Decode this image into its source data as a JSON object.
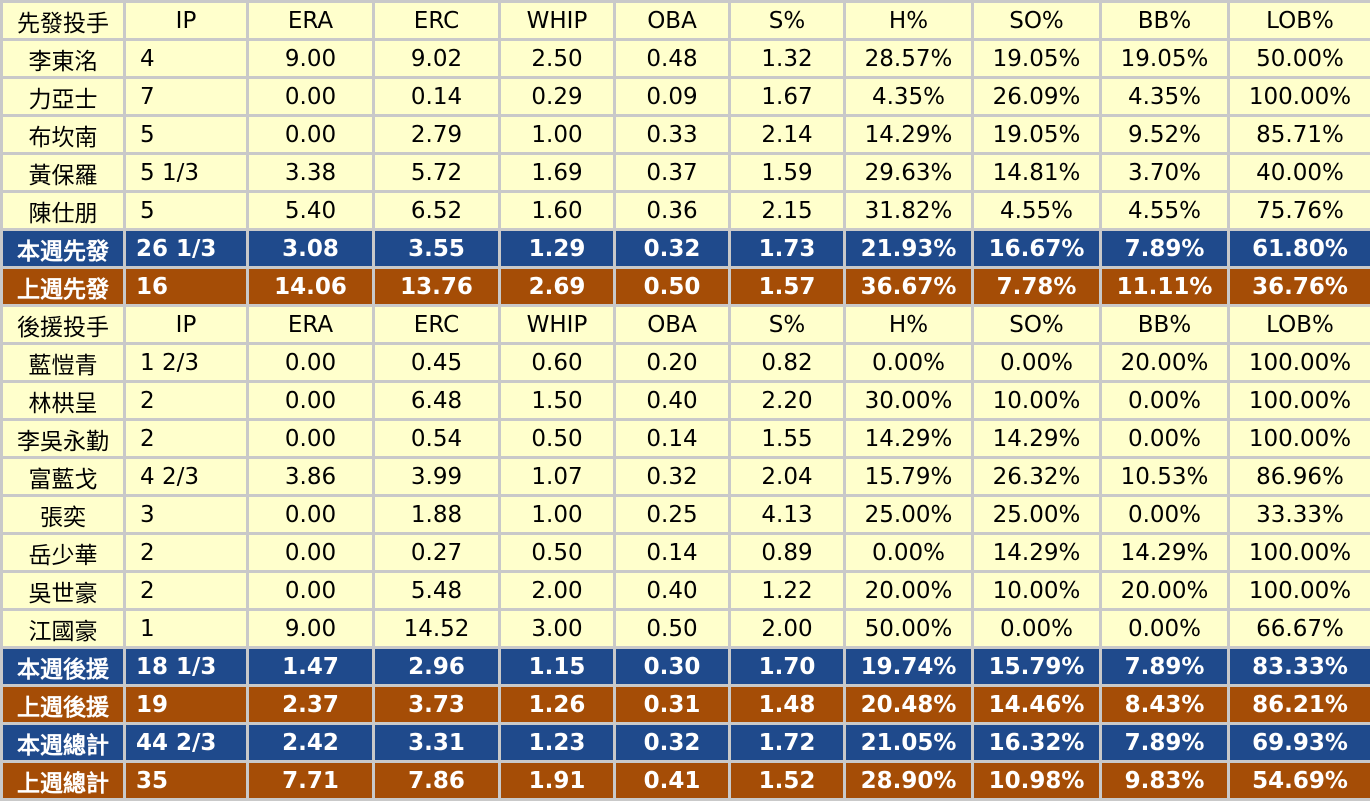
{
  "columns": [
    "IP",
    "ERA",
    "ERC",
    "WHIP",
    "OBA",
    "S%",
    "H%",
    "SO%",
    "BB%",
    "LOB%"
  ],
  "sections": [
    {
      "header": "先發投手",
      "rows": [
        {
          "name": "李東洺",
          "values": [
            "4",
            "9.00",
            "9.02",
            "2.50",
            "0.48",
            "1.32",
            "28.57%",
            "19.05%",
            "19.05%",
            "50.00%"
          ]
        },
        {
          "name": "力亞士",
          "values": [
            "7",
            "0.00",
            "0.14",
            "0.29",
            "0.09",
            "1.67",
            "4.35%",
            "26.09%",
            "4.35%",
            "100.00%"
          ]
        },
        {
          "name": "布坎南",
          "values": [
            "5",
            "0.00",
            "2.79",
            "1.00",
            "0.33",
            "2.14",
            "14.29%",
            "19.05%",
            "9.52%",
            "85.71%"
          ]
        },
        {
          "name": "黃保羅",
          "values": [
            "5 1/3",
            "3.38",
            "5.72",
            "1.69",
            "0.37",
            "1.59",
            "29.63%",
            "14.81%",
            "3.70%",
            "40.00%"
          ]
        },
        {
          "name": "陳仕朋",
          "values": [
            "5",
            "5.40",
            "6.52",
            "1.60",
            "0.36",
            "2.15",
            "31.82%",
            "4.55%",
            "4.55%",
            "75.76%"
          ]
        }
      ],
      "summaries": [
        {
          "type": "thisweek",
          "label": "本週先發",
          "values": [
            "26 1/3",
            "3.08",
            "3.55",
            "1.29",
            "0.32",
            "1.73",
            "21.93%",
            "16.67%",
            "7.89%",
            "61.80%"
          ]
        },
        {
          "type": "lastweek",
          "label": "上週先發",
          "values": [
            "16",
            "14.06",
            "13.76",
            "2.69",
            "0.50",
            "1.57",
            "36.67%",
            "7.78%",
            "11.11%",
            "36.76%"
          ]
        }
      ]
    },
    {
      "header": "後援投手",
      "rows": [
        {
          "name": "藍愷青",
          "values": [
            "1 2/3",
            "0.00",
            "0.45",
            "0.60",
            "0.20",
            "0.82",
            "0.00%",
            "0.00%",
            "20.00%",
            "100.00%"
          ]
        },
        {
          "name": "林栱呈",
          "values": [
            "2",
            "0.00",
            "6.48",
            "1.50",
            "0.40",
            "2.20",
            "30.00%",
            "10.00%",
            "0.00%",
            "100.00%"
          ]
        },
        {
          "name": "李吳永勤",
          "values": [
            "2",
            "0.00",
            "0.54",
            "0.50",
            "0.14",
            "1.55",
            "14.29%",
            "14.29%",
            "0.00%",
            "100.00%"
          ]
        },
        {
          "name": "富藍戈",
          "values": [
            "4 2/3",
            "3.86",
            "3.99",
            "1.07",
            "0.32",
            "2.04",
            "15.79%",
            "26.32%",
            "10.53%",
            "86.96%"
          ]
        },
        {
          "name": "張奕",
          "values": [
            "3",
            "0.00",
            "1.88",
            "1.00",
            "0.25",
            "4.13",
            "25.00%",
            "25.00%",
            "0.00%",
            "33.33%"
          ]
        },
        {
          "name": "岳少華",
          "values": [
            "2",
            "0.00",
            "0.27",
            "0.50",
            "0.14",
            "0.89",
            "0.00%",
            "14.29%",
            "14.29%",
            "100.00%"
          ]
        },
        {
          "name": "吳世豪",
          "values": [
            "2",
            "0.00",
            "5.48",
            "2.00",
            "0.40",
            "1.22",
            "20.00%",
            "10.00%",
            "20.00%",
            "100.00%"
          ]
        },
        {
          "name": "江國豪",
          "values": [
            "1",
            "9.00",
            "14.52",
            "3.00",
            "0.50",
            "2.00",
            "50.00%",
            "0.00%",
            "0.00%",
            "66.67%"
          ]
        }
      ],
      "summaries": [
        {
          "type": "thisweek",
          "label": "本週後援",
          "values": [
            "18 1/3",
            "1.47",
            "2.96",
            "1.15",
            "0.30",
            "1.70",
            "19.74%",
            "15.79%",
            "7.89%",
            "83.33%"
          ]
        },
        {
          "type": "lastweek",
          "label": "上週後援",
          "values": [
            "19",
            "2.37",
            "3.73",
            "1.26",
            "0.31",
            "1.48",
            "20.48%",
            "14.46%",
            "8.43%",
            "86.21%"
          ]
        },
        {
          "type": "thisweek",
          "label": "本週總計",
          "values": [
            "44 2/3",
            "2.42",
            "3.31",
            "1.23",
            "0.32",
            "1.72",
            "21.05%",
            "16.32%",
            "7.89%",
            "69.93%"
          ]
        },
        {
          "type": "lastweek",
          "label": "上週總計",
          "values": [
            "35",
            "7.71",
            "7.86",
            "1.91",
            "0.41",
            "1.52",
            "28.90%",
            "10.98%",
            "9.83%",
            "54.69%"
          ]
        }
      ]
    }
  ],
  "colors": {
    "row_bg": "#ffffcc",
    "thisweek_bg": "#1f4a8c",
    "lastweek_bg": "#a54d06",
    "grid": "#c9c9c9"
  }
}
